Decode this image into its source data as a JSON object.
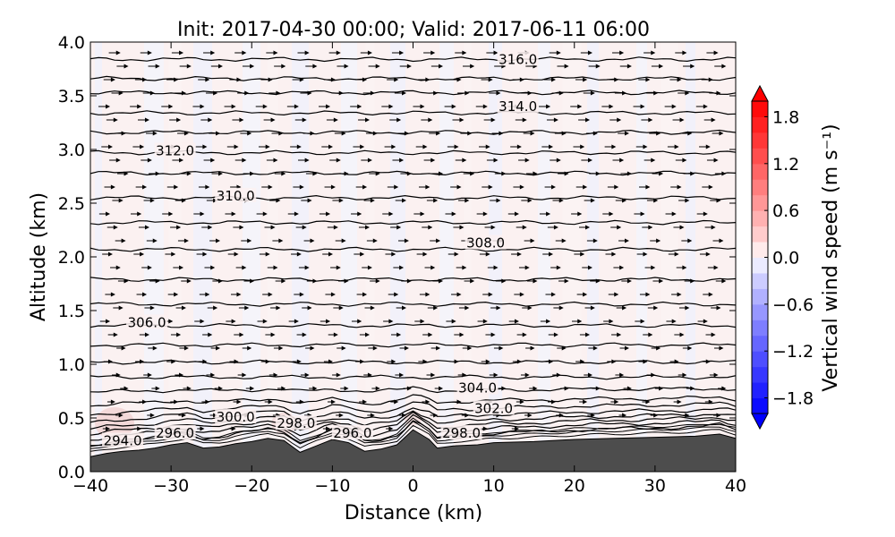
{
  "chart_data": {
    "type": "heatmap",
    "title": "Init: 2017-04-30 00:00; Valid: 2017-06-11 06:00",
    "xlabel": "Distance (km)",
    "ylabel": "Altitude (km)",
    "xlim": [
      -40,
      40
    ],
    "ylim": [
      0.0,
      4.0
    ],
    "xticks": [
      "−40",
      "−30",
      "−20",
      "−10",
      "0",
      "10",
      "20",
      "30",
      "40"
    ],
    "yticks": [
      "0.0",
      "0.5",
      "1.0",
      "1.5",
      "2.0",
      "2.5",
      "3.0",
      "3.5",
      "4.0"
    ],
    "colorbar": {
      "label": "Vertical wind speed (m s⁻¹)",
      "range": [
        -2.0,
        2.0
      ],
      "ticks": [
        "−1.8",
        "−1.2",
        "−0.6",
        "0.0",
        "0.6",
        "1.2",
        "1.8"
      ],
      "colormap": "bwr",
      "low_color": "#0000ff",
      "high_color": "#ff0000"
    },
    "contour_labels": [
      "294.0",
      "296.0",
      "296.0",
      "298.0",
      "298.0",
      "300.0",
      "302.0",
      "304.0",
      "306.0",
      "308.0",
      "310.0",
      "312.0",
      "314.0",
      "316.0"
    ],
    "contour_label_positions": [
      {
        "x": -36,
        "y": 0.28
      },
      {
        "x": -29.5,
        "y": 0.35
      },
      {
        "x": -7.5,
        "y": 0.35
      },
      {
        "x": -14.5,
        "y": 0.44
      },
      {
        "x": 6,
        "y": 0.35
      },
      {
        "x": -22,
        "y": 0.5
      },
      {
        "x": 10,
        "y": 0.58
      },
      {
        "x": 8,
        "y": 0.77
      },
      {
        "x": -33,
        "y": 1.38
      },
      {
        "x": 9,
        "y": 2.12
      },
      {
        "x": -22,
        "y": 2.56
      },
      {
        "x": -29.5,
        "y": 2.98
      },
      {
        "x": 13,
        "y": 3.39
      },
      {
        "x": 13,
        "y": 3.83
      }
    ],
    "isentrope_levels": [
      0.35,
      0.4,
      0.44,
      0.48,
      0.53,
      0.59,
      0.66,
      0.76,
      0.88,
      1.02,
      1.18,
      1.36,
      1.56,
      1.79,
      2.07,
      2.32,
      2.55,
      2.78,
      2.97,
      3.16,
      3.34,
      3.53,
      3.66,
      3.84
    ],
    "terrain": [
      {
        "x": -40,
        "y": 0.14
      },
      {
        "x": -38,
        "y": 0.17
      },
      {
        "x": -36,
        "y": 0.19
      },
      {
        "x": -34,
        "y": 0.2
      },
      {
        "x": -32,
        "y": 0.22
      },
      {
        "x": -30,
        "y": 0.25
      },
      {
        "x": -28,
        "y": 0.27
      },
      {
        "x": -26,
        "y": 0.22
      },
      {
        "x": -24,
        "y": 0.23
      },
      {
        "x": -22,
        "y": 0.26
      },
      {
        "x": -20,
        "y": 0.28
      },
      {
        "x": -18,
        "y": 0.31
      },
      {
        "x": -16,
        "y": 0.29
      },
      {
        "x": -14,
        "y": 0.18
      },
      {
        "x": -12,
        "y": 0.24
      },
      {
        "x": -10,
        "y": 0.3
      },
      {
        "x": -8,
        "y": 0.27
      },
      {
        "x": -6,
        "y": 0.19
      },
      {
        "x": -4,
        "y": 0.21
      },
      {
        "x": -2,
        "y": 0.25
      },
      {
        "x": 0,
        "y": 0.39
      },
      {
        "x": 2,
        "y": 0.3
      },
      {
        "x": 3,
        "y": 0.22
      },
      {
        "x": 5,
        "y": 0.24
      },
      {
        "x": 8,
        "y": 0.25
      },
      {
        "x": 10,
        "y": 0.27
      },
      {
        "x": 15,
        "y": 0.28
      },
      {
        "x": 20,
        "y": 0.3
      },
      {
        "x": 25,
        "y": 0.31
      },
      {
        "x": 30,
        "y": 0.32
      },
      {
        "x": 35,
        "y": 0.33
      },
      {
        "x": 38,
        "y": 0.35
      },
      {
        "x": 40,
        "y": 0.31
      }
    ],
    "terrain_color": "#4d4d4d",
    "grid": false
  }
}
